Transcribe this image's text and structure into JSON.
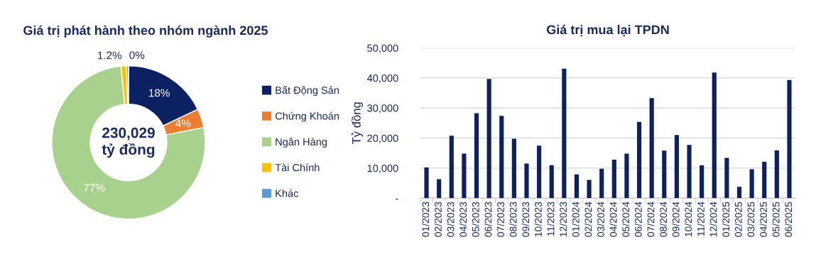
{
  "chart_data": [
    {
      "type": "donut",
      "title": "Giá trị phát hành theo nhóm ngành 2025",
      "categories": [
        "Bất Động Sản",
        "Chứng Khoán",
        "Ngân Hàng",
        "Tài Chính",
        "Khác"
      ],
      "values": [
        18,
        4,
        77,
        1.2,
        0.4
      ],
      "value_labels": [
        "18%",
        "4%",
        "77%",
        "1.2%",
        "0%"
      ],
      "colors": [
        "#0b2161",
        "#ed7d31",
        "#a9d18e",
        "#ffc000",
        "#5b9bd5"
      ],
      "annotations": [
        "230,029\ntỷ đồng"
      ],
      "legend": "right"
    },
    {
      "type": "bar",
      "title": "Giá trị mua lại TPDN",
      "ylabel": "Tỷ đồng",
      "categories": [
        "01/2023",
        "02/2023",
        "03/2023",
        "04/2023",
        "05/2023",
        "06/2023",
        "07/2023",
        "08/2023",
        "09/2023",
        "10/2023",
        "11/2023",
        "12/2023",
        "01/2024",
        "02/2024",
        "03/2024",
        "04/2024",
        "05/2024",
        "06/2024",
        "07/2024",
        "08/2024",
        "09/2024",
        "10/2024",
        "11/2024",
        "12/2024",
        "01/2025",
        "02/2025",
        "03/2025",
        "04/2025",
        "05/2025",
        "06/2025"
      ],
      "values": [
        10200,
        6300,
        20800,
        14800,
        28300,
        39700,
        27400,
        19800,
        11500,
        17500,
        11000,
        43100,
        7900,
        6100,
        9800,
        12800,
        14800,
        25400,
        33300,
        15800,
        21000,
        17700,
        10900,
        41800,
        13400,
        3800,
        9600,
        12100,
        15900,
        39300
      ],
      "color": "#0b2161",
      "ylim": [
        0,
        50000
      ],
      "yticks": [
        {
          "value": 0,
          "label": "-"
        },
        {
          "value": 10000,
          "label": "10,000"
        },
        {
          "value": 20000,
          "label": "20,000"
        },
        {
          "value": 30000,
          "label": "30,000"
        },
        {
          "value": 40000,
          "label": "40,000"
        },
        {
          "value": 50000,
          "label": "50,000"
        }
      ],
      "grid": "y"
    }
  ]
}
